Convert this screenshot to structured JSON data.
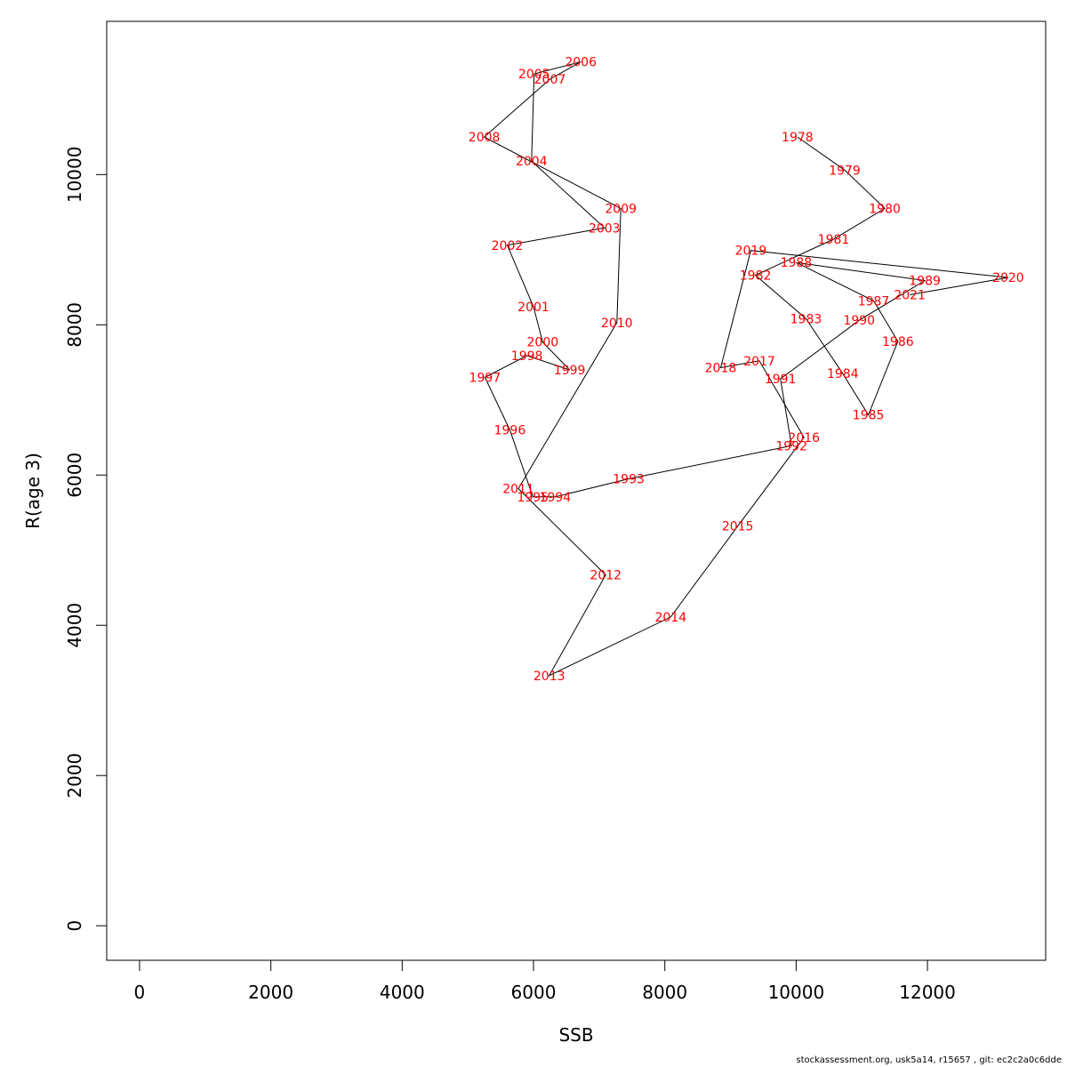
{
  "chart_data": {
    "type": "line",
    "title": "",
    "xlabel": "SSB",
    "ylabel": "R(age 3)",
    "xlim": [
      -500,
      13800
    ],
    "ylim": [
      -460,
      12040
    ],
    "x_ticks": [
      0,
      2000,
      4000,
      6000,
      8000,
      10000,
      12000
    ],
    "y_ticks": [
      0,
      2000,
      4000,
      6000,
      8000,
      10000
    ],
    "grid": false,
    "line_color": "#000000",
    "label_color": "#ff0000",
    "points": [
      {
        "label": "1978",
        "x": 10020,
        "y": 10500
      },
      {
        "label": "1979",
        "x": 10740,
        "y": 10060
      },
      {
        "label": "1980",
        "x": 11350,
        "y": 9550
      },
      {
        "label": "1981",
        "x": 10570,
        "y": 9140
      },
      {
        "label": "1982",
        "x": 9380,
        "y": 8660
      },
      {
        "label": "1983",
        "x": 10150,
        "y": 8080
      },
      {
        "label": "1984",
        "x": 10710,
        "y": 7350
      },
      {
        "label": "1985",
        "x": 11100,
        "y": 6800
      },
      {
        "label": "1986",
        "x": 11550,
        "y": 7780
      },
      {
        "label": "1987",
        "x": 11180,
        "y": 8320
      },
      {
        "label": "1988",
        "x": 10000,
        "y": 8830
      },
      {
        "label": "1989",
        "x": 11960,
        "y": 8590
      },
      {
        "label": "1990",
        "x": 10960,
        "y": 8060
      },
      {
        "label": "1991",
        "x": 9760,
        "y": 7280
      },
      {
        "label": "1992",
        "x": 9930,
        "y": 6390
      },
      {
        "label": "1993",
        "x": 7450,
        "y": 5950
      },
      {
        "label": "1994",
        "x": 6330,
        "y": 5710
      },
      {
        "label": "1995",
        "x": 5990,
        "y": 5710
      },
      {
        "label": "1996",
        "x": 5640,
        "y": 6600
      },
      {
        "label": "1997",
        "x": 5260,
        "y": 7300
      },
      {
        "label": "1998",
        "x": 5900,
        "y": 7590
      },
      {
        "label": "1999",
        "x": 6550,
        "y": 7400
      },
      {
        "label": "2000",
        "x": 6140,
        "y": 7770
      },
      {
        "label": "2001",
        "x": 6000,
        "y": 8240
      },
      {
        "label": "2002",
        "x": 5600,
        "y": 9060
      },
      {
        "label": "2003",
        "x": 7080,
        "y": 9290
      },
      {
        "label": "2004",
        "x": 5970,
        "y": 10180
      },
      {
        "label": "2005",
        "x": 6010,
        "y": 11340
      },
      {
        "label": "2006",
        "x": 6720,
        "y": 11500
      },
      {
        "label": "2007",
        "x": 6250,
        "y": 11270
      },
      {
        "label": "2008",
        "x": 5250,
        "y": 10500
      },
      {
        "label": "2009",
        "x": 7330,
        "y": 9550
      },
      {
        "label": "2010",
        "x": 7270,
        "y": 8030
      },
      {
        "label": "2011",
        "x": 5770,
        "y": 5820
      },
      {
        "label": "2012",
        "x": 7100,
        "y": 4670
      },
      {
        "label": "2013",
        "x": 6240,
        "y": 3330
      },
      {
        "label": "2014",
        "x": 8090,
        "y": 4110
      },
      {
        "label": "2015",
        "x": 9110,
        "y": 5320
      },
      {
        "label": "2016",
        "x": 10120,
        "y": 6500
      },
      {
        "label": "2017",
        "x": 9440,
        "y": 7520
      },
      {
        "label": "2018",
        "x": 8850,
        "y": 7430
      },
      {
        "label": "2019",
        "x": 9310,
        "y": 8990
      },
      {
        "label": "2020",
        "x": 13230,
        "y": 8630
      },
      {
        "label": "2021",
        "x": 11730,
        "y": 8400
      }
    ]
  },
  "footer": "stockassessment.org, usk5a14, r15657 , git: ec2c2a0c6dde"
}
